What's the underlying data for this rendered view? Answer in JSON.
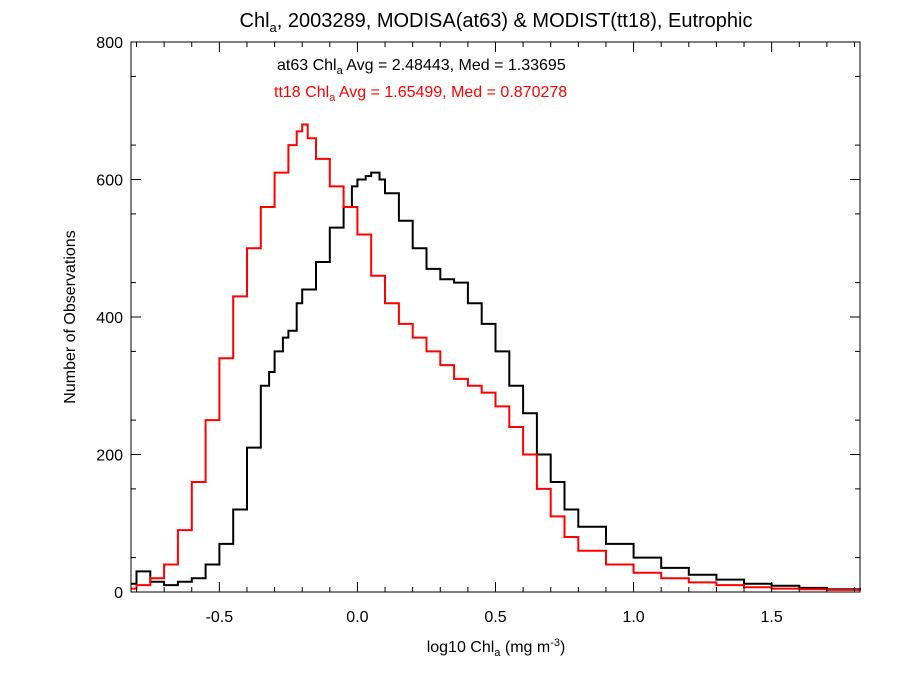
{
  "chart_data": {
    "type": "line",
    "title": {
      "prefix": "Chl",
      "sub": "a",
      "rest": ", 2003289, MODISA(at63) & MODIST(tt18), Eutrophic"
    },
    "xlabel": {
      "prefix": "log10 Chl",
      "sub": "a",
      "mid": " (mg m",
      "sup": "-3",
      "end": ")"
    },
    "ylabel": "Number of Observations",
    "xlim": [
      -0.82,
      1.82
    ],
    "ylim": [
      0,
      800
    ],
    "xticks": [
      -0.5,
      0.0,
      0.5,
      1.0,
      1.5
    ],
    "xtick_labels": [
      "-0.5",
      "0.0",
      "0.5",
      "1.0",
      "1.5"
    ],
    "yticks": [
      0,
      200,
      400,
      600,
      800
    ],
    "ytick_labels": [
      "0",
      "200",
      "400",
      "600",
      "800"
    ],
    "grid": false,
    "annotations": [
      {
        "prefix": "at63 Chl",
        "sub": "a",
        "rest": " Avg = 2.48443, Med = 1.33695",
        "color": "#000000"
      },
      {
        "prefix": "tt18 Chl",
        "sub": "a",
        "rest": " Avg = 1.65499, Med = 0.870278",
        "color": "#ff0000"
      }
    ],
    "series": [
      {
        "color": "#000000",
        "step": "histogram",
        "x": [
          -0.82,
          -0.8,
          -0.75,
          -0.7,
          -0.65,
          -0.6,
          -0.55,
          -0.5,
          -0.45,
          -0.4,
          -0.35,
          -0.32,
          -0.3,
          -0.27,
          -0.25,
          -0.22,
          -0.2,
          -0.15,
          -0.1,
          -0.05,
          -0.02,
          0.0,
          0.03,
          0.05,
          0.08,
          0.1,
          0.15,
          0.2,
          0.25,
          0.3,
          0.35,
          0.4,
          0.45,
          0.5,
          0.55,
          0.6,
          0.65,
          0.7,
          0.75,
          0.8,
          0.9,
          1.0,
          1.1,
          1.2,
          1.3,
          1.4,
          1.5,
          1.6,
          1.7,
          1.82
        ],
        "y": [
          12,
          30,
          15,
          10,
          15,
          20,
          40,
          70,
          120,
          210,
          300,
          320,
          350,
          370,
          380,
          420,
          440,
          480,
          530,
          560,
          590,
          600,
          605,
          610,
          600,
          580,
          540,
          500,
          470,
          455,
          450,
          420,
          390,
          350,
          300,
          260,
          200,
          160,
          120,
          95,
          70,
          50,
          35,
          25,
          18,
          12,
          9,
          6,
          4,
          3
        ]
      },
      {
        "color": "#ff0000",
        "step": "histogram",
        "x": [
          -0.82,
          -0.8,
          -0.75,
          -0.7,
          -0.65,
          -0.6,
          -0.55,
          -0.5,
          -0.45,
          -0.4,
          -0.35,
          -0.3,
          -0.25,
          -0.22,
          -0.2,
          -0.18,
          -0.15,
          -0.1,
          -0.05,
          0.0,
          0.05,
          0.1,
          0.15,
          0.2,
          0.25,
          0.3,
          0.35,
          0.4,
          0.45,
          0.5,
          0.55,
          0.6,
          0.65,
          0.7,
          0.75,
          0.8,
          0.9,
          1.0,
          1.1,
          1.2,
          1.3,
          1.4,
          1.5,
          1.6,
          1.7,
          1.82
        ],
        "y": [
          5,
          10,
          20,
          40,
          90,
          160,
          250,
          340,
          430,
          500,
          560,
          610,
          650,
          670,
          680,
          660,
          630,
          590,
          560,
          520,
          460,
          420,
          390,
          370,
          350,
          330,
          310,
          300,
          290,
          270,
          240,
          200,
          150,
          110,
          80,
          60,
          40,
          28,
          20,
          14,
          10,
          7,
          5,
          4,
          3,
          2
        ]
      }
    ]
  }
}
